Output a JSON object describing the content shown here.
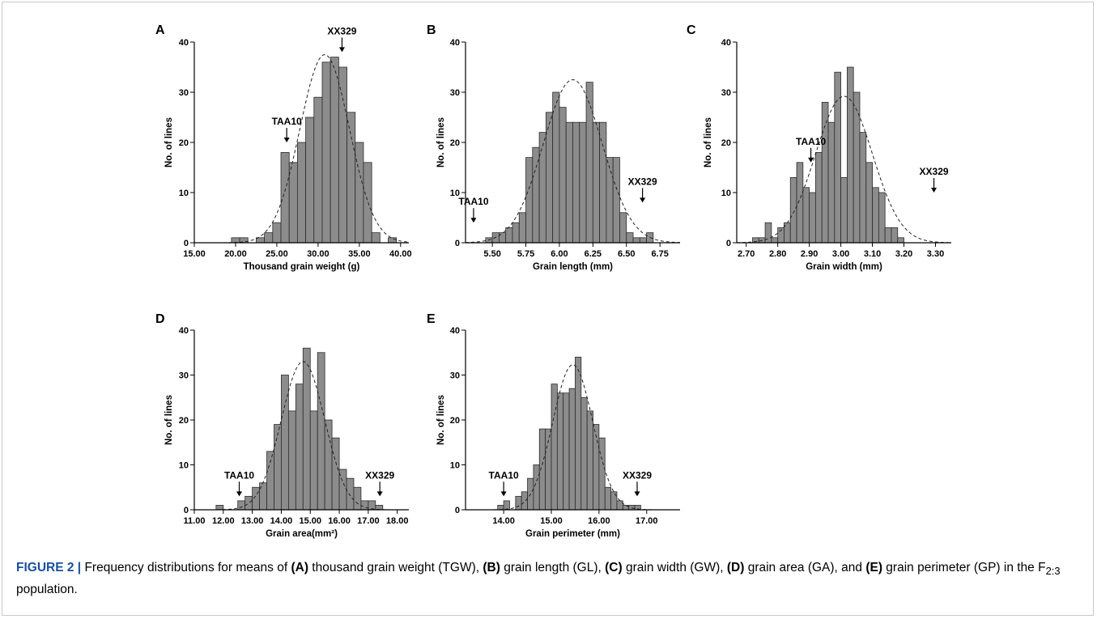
{
  "caption": {
    "label": "FIGURE 2 |",
    "p1": " Frequency distributions for means of ",
    "a": "(A)",
    "p2": " thousand grain weight (TGW), ",
    "b": "(B)",
    "p3": " grain length (GL), ",
    "c": "(C)",
    "p4": " grain width (GW), ",
    "d": "(D)",
    "p5": " grain area (GA), and ",
    "e": "(E)",
    "p6": " grain perimeter (GP) in the F",
    "sub": "2:3",
    "p7": " population."
  },
  "chart_data": [
    {
      "type": "bar",
      "panel": "A",
      "xlabel": "Thousand grain weight (g)",
      "ylabel": "No. of lines",
      "xlim": [
        15,
        41
      ],
      "ylim": [
        0,
        40
      ],
      "yticks": [
        0,
        10,
        20,
        30,
        40
      ],
      "xticks": [
        "15.00",
        "20.00",
        "25.00",
        "30.00",
        "35.00",
        "40.00"
      ],
      "bin_width": 1.0,
      "bin_starts": [
        19.5,
        20.5,
        21.5,
        22.5,
        23.5,
        24.5,
        25.5,
        26.5,
        27.5,
        28.5,
        29.5,
        30.5,
        31.5,
        32.5,
        33.5,
        34.5,
        35.5,
        36.5,
        37.5,
        38.5,
        39.5
      ],
      "values": [
        1,
        1,
        0,
        1,
        2,
        4,
        18,
        16,
        20,
        25,
        29,
        36,
        37,
        35,
        26,
        20,
        16,
        2,
        0,
        1,
        0
      ],
      "normal_curve": {
        "mean": 30.8,
        "sd": 3.0,
        "peak": 37.5
      },
      "markers": [
        {
          "label": "TAA10",
          "x": 26.2,
          "y": 20
        },
        {
          "label": "XX329",
          "x": 32.9,
          "y": 38
        }
      ]
    },
    {
      "type": "bar",
      "panel": "B",
      "xlabel": "Grain length (mm)",
      "ylabel": "No. of lines",
      "xlim": [
        5.3,
        6.9
      ],
      "ylim": [
        0,
        40
      ],
      "yticks": [
        0,
        10,
        20,
        30,
        40
      ],
      "xticks": [
        "5.50",
        "5.75",
        "6.00",
        "6.25",
        "6.50",
        "6.75"
      ],
      "bin_width": 0.05,
      "bin_starts": [
        5.35,
        5.4,
        5.45,
        5.5,
        5.55,
        5.6,
        5.65,
        5.7,
        5.75,
        5.8,
        5.85,
        5.9,
        5.95,
        6.0,
        6.05,
        6.1,
        6.15,
        6.2,
        6.25,
        6.3,
        6.35,
        6.4,
        6.45,
        6.5,
        6.55,
        6.6,
        6.65,
        6.7
      ],
      "values": [
        0,
        0,
        1,
        2,
        2,
        3,
        4,
        6,
        17,
        19,
        22,
        26,
        30,
        27,
        24,
        24,
        24,
        32,
        24,
        24,
        17,
        17,
        6,
        2,
        1,
        1,
        2,
        0
      ],
      "normal_curve": {
        "mean": 6.1,
        "sd": 0.22,
        "peak": 32.5
      },
      "markers": [
        {
          "label": "TAA10",
          "x": 5.36,
          "y": 4
        },
        {
          "label": "XX329",
          "x": 6.62,
          "y": 8
        }
      ]
    },
    {
      "type": "bar",
      "panel": "C",
      "xlabel": "Grain width (mm)",
      "ylabel": "No. of lines",
      "xlim": [
        2.67,
        3.35
      ],
      "ylim": [
        0,
        40
      ],
      "yticks": [
        0,
        10,
        20,
        30,
        40
      ],
      "xticks": [
        "2.70",
        "2.80",
        "2.90",
        "3.00",
        "3.10",
        "3.20",
        "3.30"
      ],
      "bin_width": 0.02,
      "bin_starts": [
        2.7,
        2.72,
        2.74,
        2.76,
        2.78,
        2.8,
        2.82,
        2.84,
        2.86,
        2.88,
        2.9,
        2.92,
        2.94,
        2.96,
        2.98,
        3.0,
        3.02,
        3.04,
        3.06,
        3.08,
        3.1,
        3.12,
        3.14,
        3.16,
        3.18,
        3.2,
        3.22
      ],
      "values": [
        0,
        1,
        1,
        4,
        1,
        3,
        4,
        13,
        16,
        11,
        10,
        18,
        28,
        24,
        34,
        13,
        35,
        30,
        22,
        16,
        11,
        10,
        3,
        3,
        1,
        0,
        0
      ],
      "normal_curve": {
        "mean": 3.01,
        "sd": 0.09,
        "peak": 29.2
      },
      "markers": [
        {
          "label": "TAA10",
          "x": 2.905,
          "y": 16
        },
        {
          "label": "XX329",
          "x": 3.295,
          "y": 10
        }
      ]
    },
    {
      "type": "bar",
      "panel": "D",
      "xlabel": "Grain area(mm²)",
      "ylabel": "No. of lines",
      "xlim": [
        11.0,
        18.4
      ],
      "ylim": [
        0,
        40
      ],
      "yticks": [
        0,
        10,
        20,
        30,
        40
      ],
      "xticks": [
        "11.00",
        "12.00",
        "13.00",
        "14.00",
        "15.00",
        "16.00",
        "17.00",
        "18.00"
      ],
      "bin_width": 0.25,
      "bin_starts": [
        11.75,
        12.0,
        12.25,
        12.5,
        12.75,
        13.0,
        13.25,
        13.5,
        13.75,
        14.0,
        14.25,
        14.5,
        14.75,
        15.0,
        15.25,
        15.5,
        15.75,
        16.0,
        16.25,
        16.5,
        16.75,
        17.0,
        17.25
      ],
      "values": [
        1,
        0,
        0,
        2,
        3,
        5,
        6,
        13,
        19,
        30,
        22,
        28,
        36,
        22,
        35,
        20,
        16,
        9,
        7,
        5,
        2,
        2,
        1
      ],
      "normal_curve": {
        "mean": 14.75,
        "sd": 0.75,
        "peak": 33
      },
      "markers": [
        {
          "label": "TAA10",
          "x": 12.55,
          "y": 3
        },
        {
          "label": "XX329",
          "x": 17.4,
          "y": 3
        }
      ]
    },
    {
      "type": "bar",
      "panel": "E",
      "xlabel": "Grain perimeter (mm)",
      "ylabel": "No. of lines",
      "xlim": [
        13.2,
        17.7
      ],
      "ylim": [
        0,
        40
      ],
      "yticks": [
        0,
        10,
        20,
        30,
        40
      ],
      "xticks": [
        "14.00",
        "15.00",
        "16.00",
        "17.00"
      ],
      "bin_width": 0.125,
      "bin_starts": [
        13.875,
        14.0,
        14.125,
        14.25,
        14.375,
        14.5,
        14.625,
        14.75,
        14.875,
        15.0,
        15.125,
        15.25,
        15.375,
        15.5,
        15.625,
        15.75,
        15.875,
        16.0,
        16.125,
        16.25,
        16.375,
        16.5,
        16.625,
        16.75,
        16.875
      ],
      "values": [
        1,
        2,
        0,
        3,
        4,
        7,
        10,
        18,
        18,
        28,
        26,
        26,
        27,
        34,
        25,
        22,
        19,
        16,
        5,
        4,
        2,
        1,
        1,
        1,
        0
      ],
      "normal_curve": {
        "mean": 15.45,
        "sd": 0.42,
        "peak": 32.3
      },
      "markers": [
        {
          "label": "TAA10",
          "x": 14.0,
          "y": 3
        },
        {
          "label": "XX329",
          "x": 16.8,
          "y": 3
        }
      ]
    }
  ]
}
